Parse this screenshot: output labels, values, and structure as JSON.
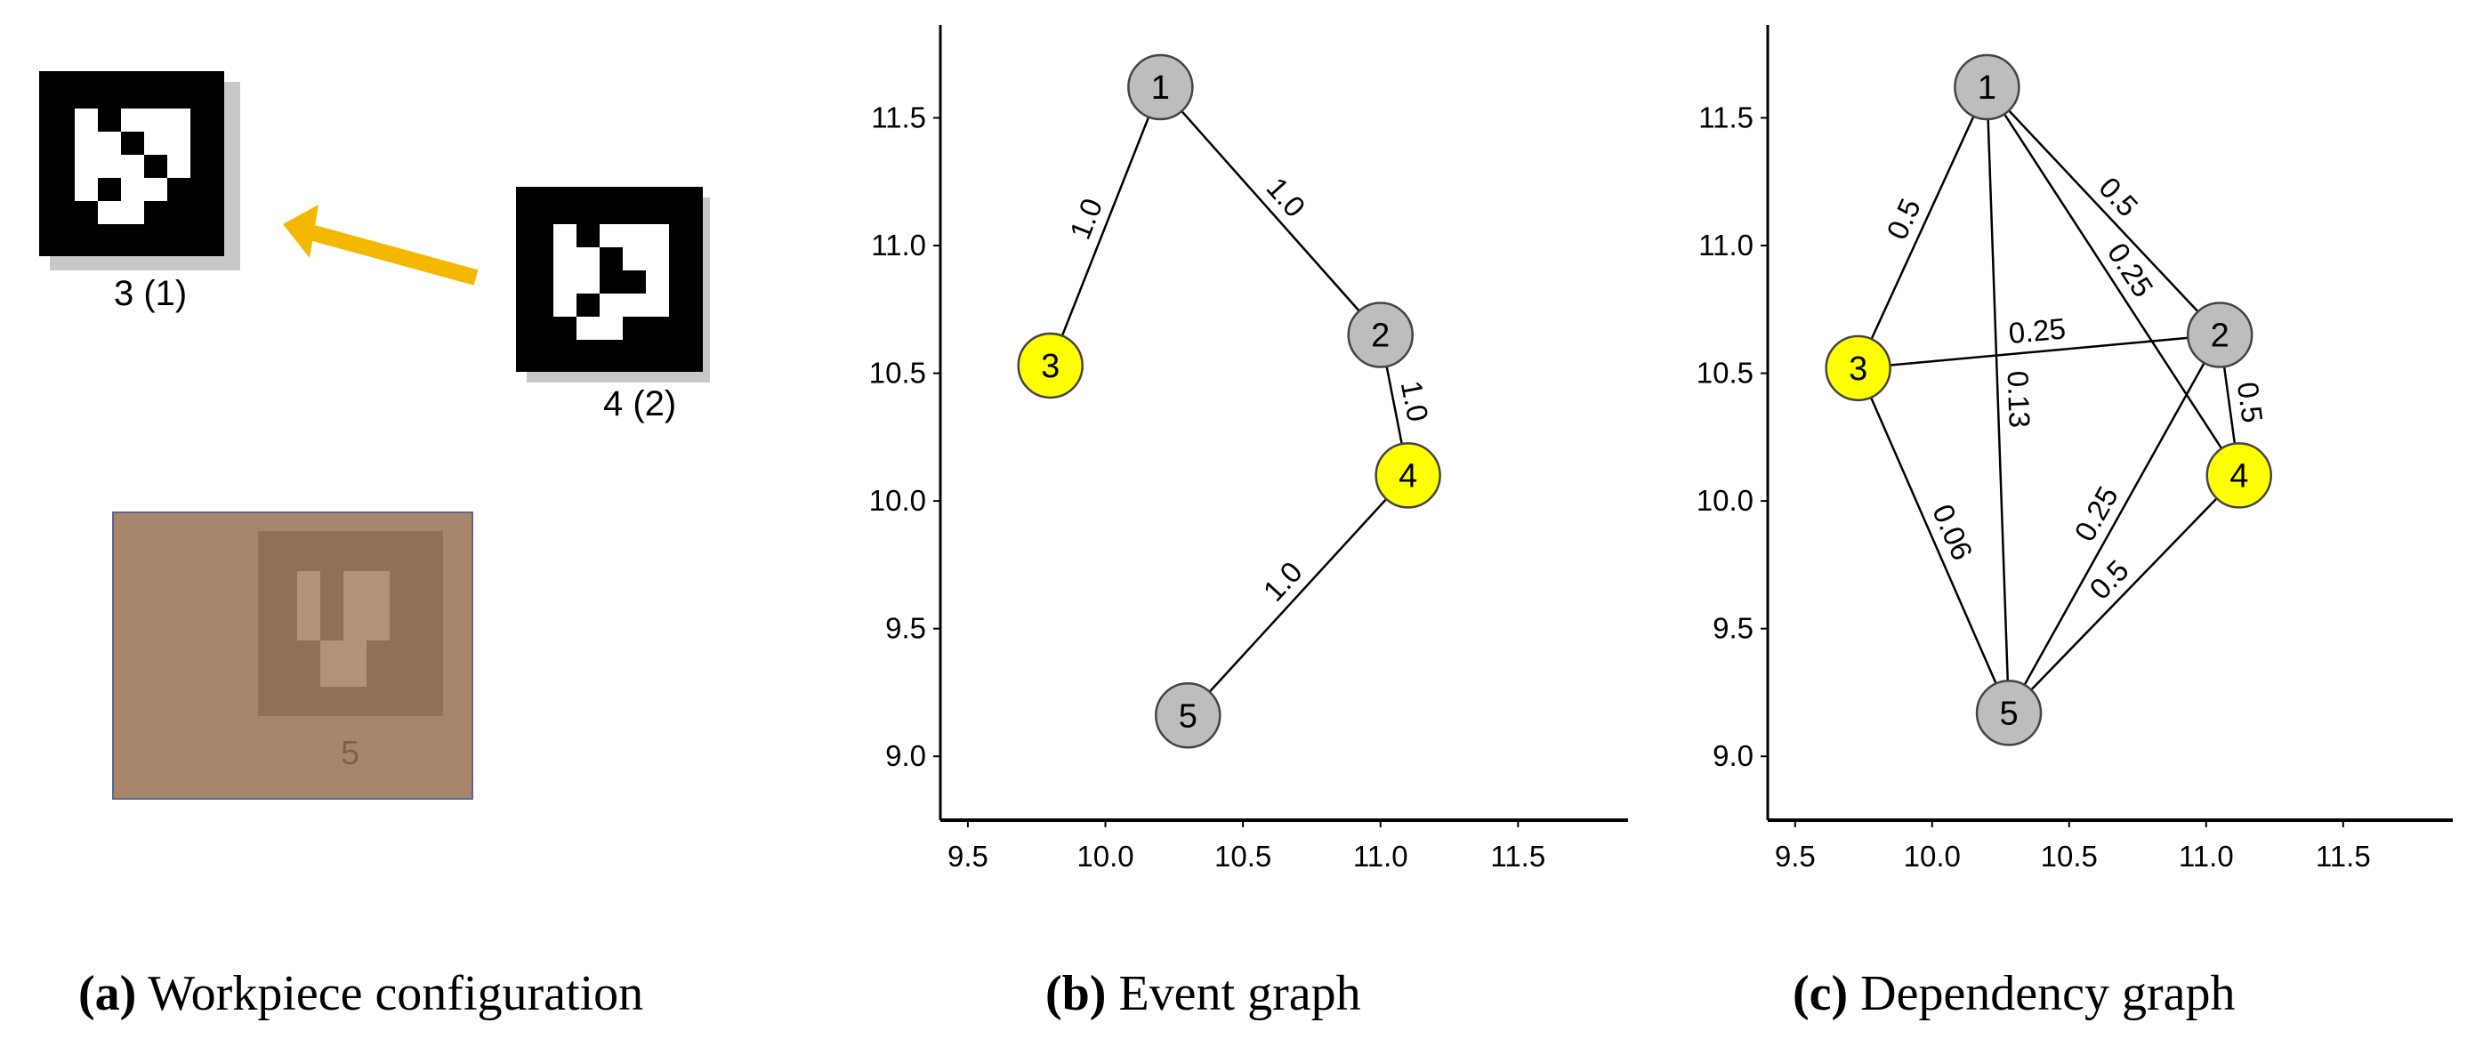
{
  "panel_a": {
    "markers": [
      {
        "id": 3,
        "label": "3 (1)"
      },
      {
        "id": 4,
        "label": "4 (2)"
      }
    ],
    "ghost_label": "5",
    "arrow_color": "#f5b800",
    "caption_letter": "(a)",
    "caption_text": "Workpiece configuration"
  },
  "panel_b": {
    "caption_letter": "(b)",
    "caption_text": "Event graph"
  },
  "panel_c": {
    "caption_letter": "(c)",
    "caption_text": "Dependency graph"
  },
  "colors": {
    "highlight_node": "#ffff00",
    "normal_node": "#bdbdbd",
    "ghost_fill": "#a8866c"
  },
  "chart_data": [
    {
      "type": "network",
      "name_hint": "event-graph",
      "xticks": [
        "9.5",
        "10.0",
        "10.5",
        "11.0",
        "11.5"
      ],
      "yticks": [
        "11.5",
        "11.0",
        "10.5",
        "10.0",
        "9.5",
        "9.0"
      ],
      "xlim": [
        9.4,
        11.9
      ],
      "ylim": [
        8.75,
        11.85
      ],
      "nodes": [
        {
          "id": "1",
          "x": 10.2,
          "y": 11.62,
          "highlight": false
        },
        {
          "id": "2",
          "x": 11.0,
          "y": 10.65,
          "highlight": false
        },
        {
          "id": "3",
          "x": 9.8,
          "y": 10.53,
          "highlight": true
        },
        {
          "id": "4",
          "x": 11.1,
          "y": 10.1,
          "highlight": true
        },
        {
          "id": "5",
          "x": 10.3,
          "y": 9.16,
          "highlight": false
        }
      ],
      "edges": [
        {
          "from": "1",
          "to": "3",
          "label": "1.0"
        },
        {
          "from": "1",
          "to": "2",
          "label": "1.0"
        },
        {
          "from": "2",
          "to": "4",
          "label": "1.0"
        },
        {
          "from": "4",
          "to": "5",
          "label": "1.0"
        }
      ]
    },
    {
      "type": "network",
      "name_hint": "dependency-graph",
      "xticks": [
        "9.5",
        "10.0",
        "10.5",
        "11.0",
        "11.5"
      ],
      "yticks": [
        "11.5",
        "11.0",
        "10.5",
        "10.0",
        "9.5",
        "9.0"
      ],
      "xlim": [
        9.4,
        11.9
      ],
      "ylim": [
        8.75,
        11.85
      ],
      "nodes": [
        {
          "id": "1",
          "x": 10.2,
          "y": 11.62,
          "highlight": false
        },
        {
          "id": "2",
          "x": 11.05,
          "y": 10.65,
          "highlight": false
        },
        {
          "id": "3",
          "x": 9.73,
          "y": 10.52,
          "highlight": true
        },
        {
          "id": "4",
          "x": 11.12,
          "y": 10.1,
          "highlight": true
        },
        {
          "id": "5",
          "x": 10.28,
          "y": 9.17,
          "highlight": false
        }
      ],
      "edges": [
        {
          "from": "1",
          "to": "3",
          "label": "0.5"
        },
        {
          "from": "1",
          "to": "2",
          "label": "0.5"
        },
        {
          "from": "1",
          "to": "4",
          "label": "0.25"
        },
        {
          "from": "1",
          "to": "5",
          "label": "0.13"
        },
        {
          "from": "3",
          "to": "2",
          "label": "0.25"
        },
        {
          "from": "3",
          "to": "5",
          "label": "0.06"
        },
        {
          "from": "2",
          "to": "4",
          "label": "0.5"
        },
        {
          "from": "2",
          "to": "5",
          "label": "0.25"
        },
        {
          "from": "4",
          "to": "5",
          "label": "0.5"
        }
      ]
    }
  ]
}
